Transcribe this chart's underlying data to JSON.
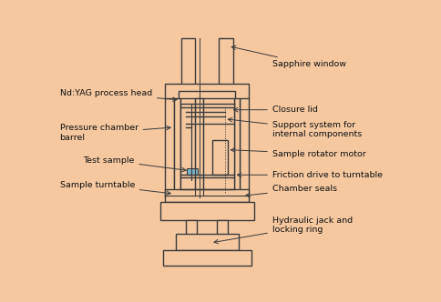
{
  "bg_color": "#F5C8A0",
  "line_color": "#3a3a3a",
  "line_width": 1.0,
  "labels": {
    "nd_yag": "Nd:YAG process head",
    "sapphire": "Sapphire window",
    "closure_lid": "Closure lid",
    "pressure_barrel": "Pressure chamber\nbarrel",
    "support_system": "Support system for\ninternal components",
    "test_sample": "Test sample",
    "sample_rotator": "Sample rotator motor",
    "sample_turntable": "Sample turntable",
    "friction_drive": "Friction drive to turntable",
    "chamber_seals": "Chamber seals",
    "hydraulic_jack": "Hydraulic jack and\nlocking ring"
  },
  "font_size": 6.8
}
